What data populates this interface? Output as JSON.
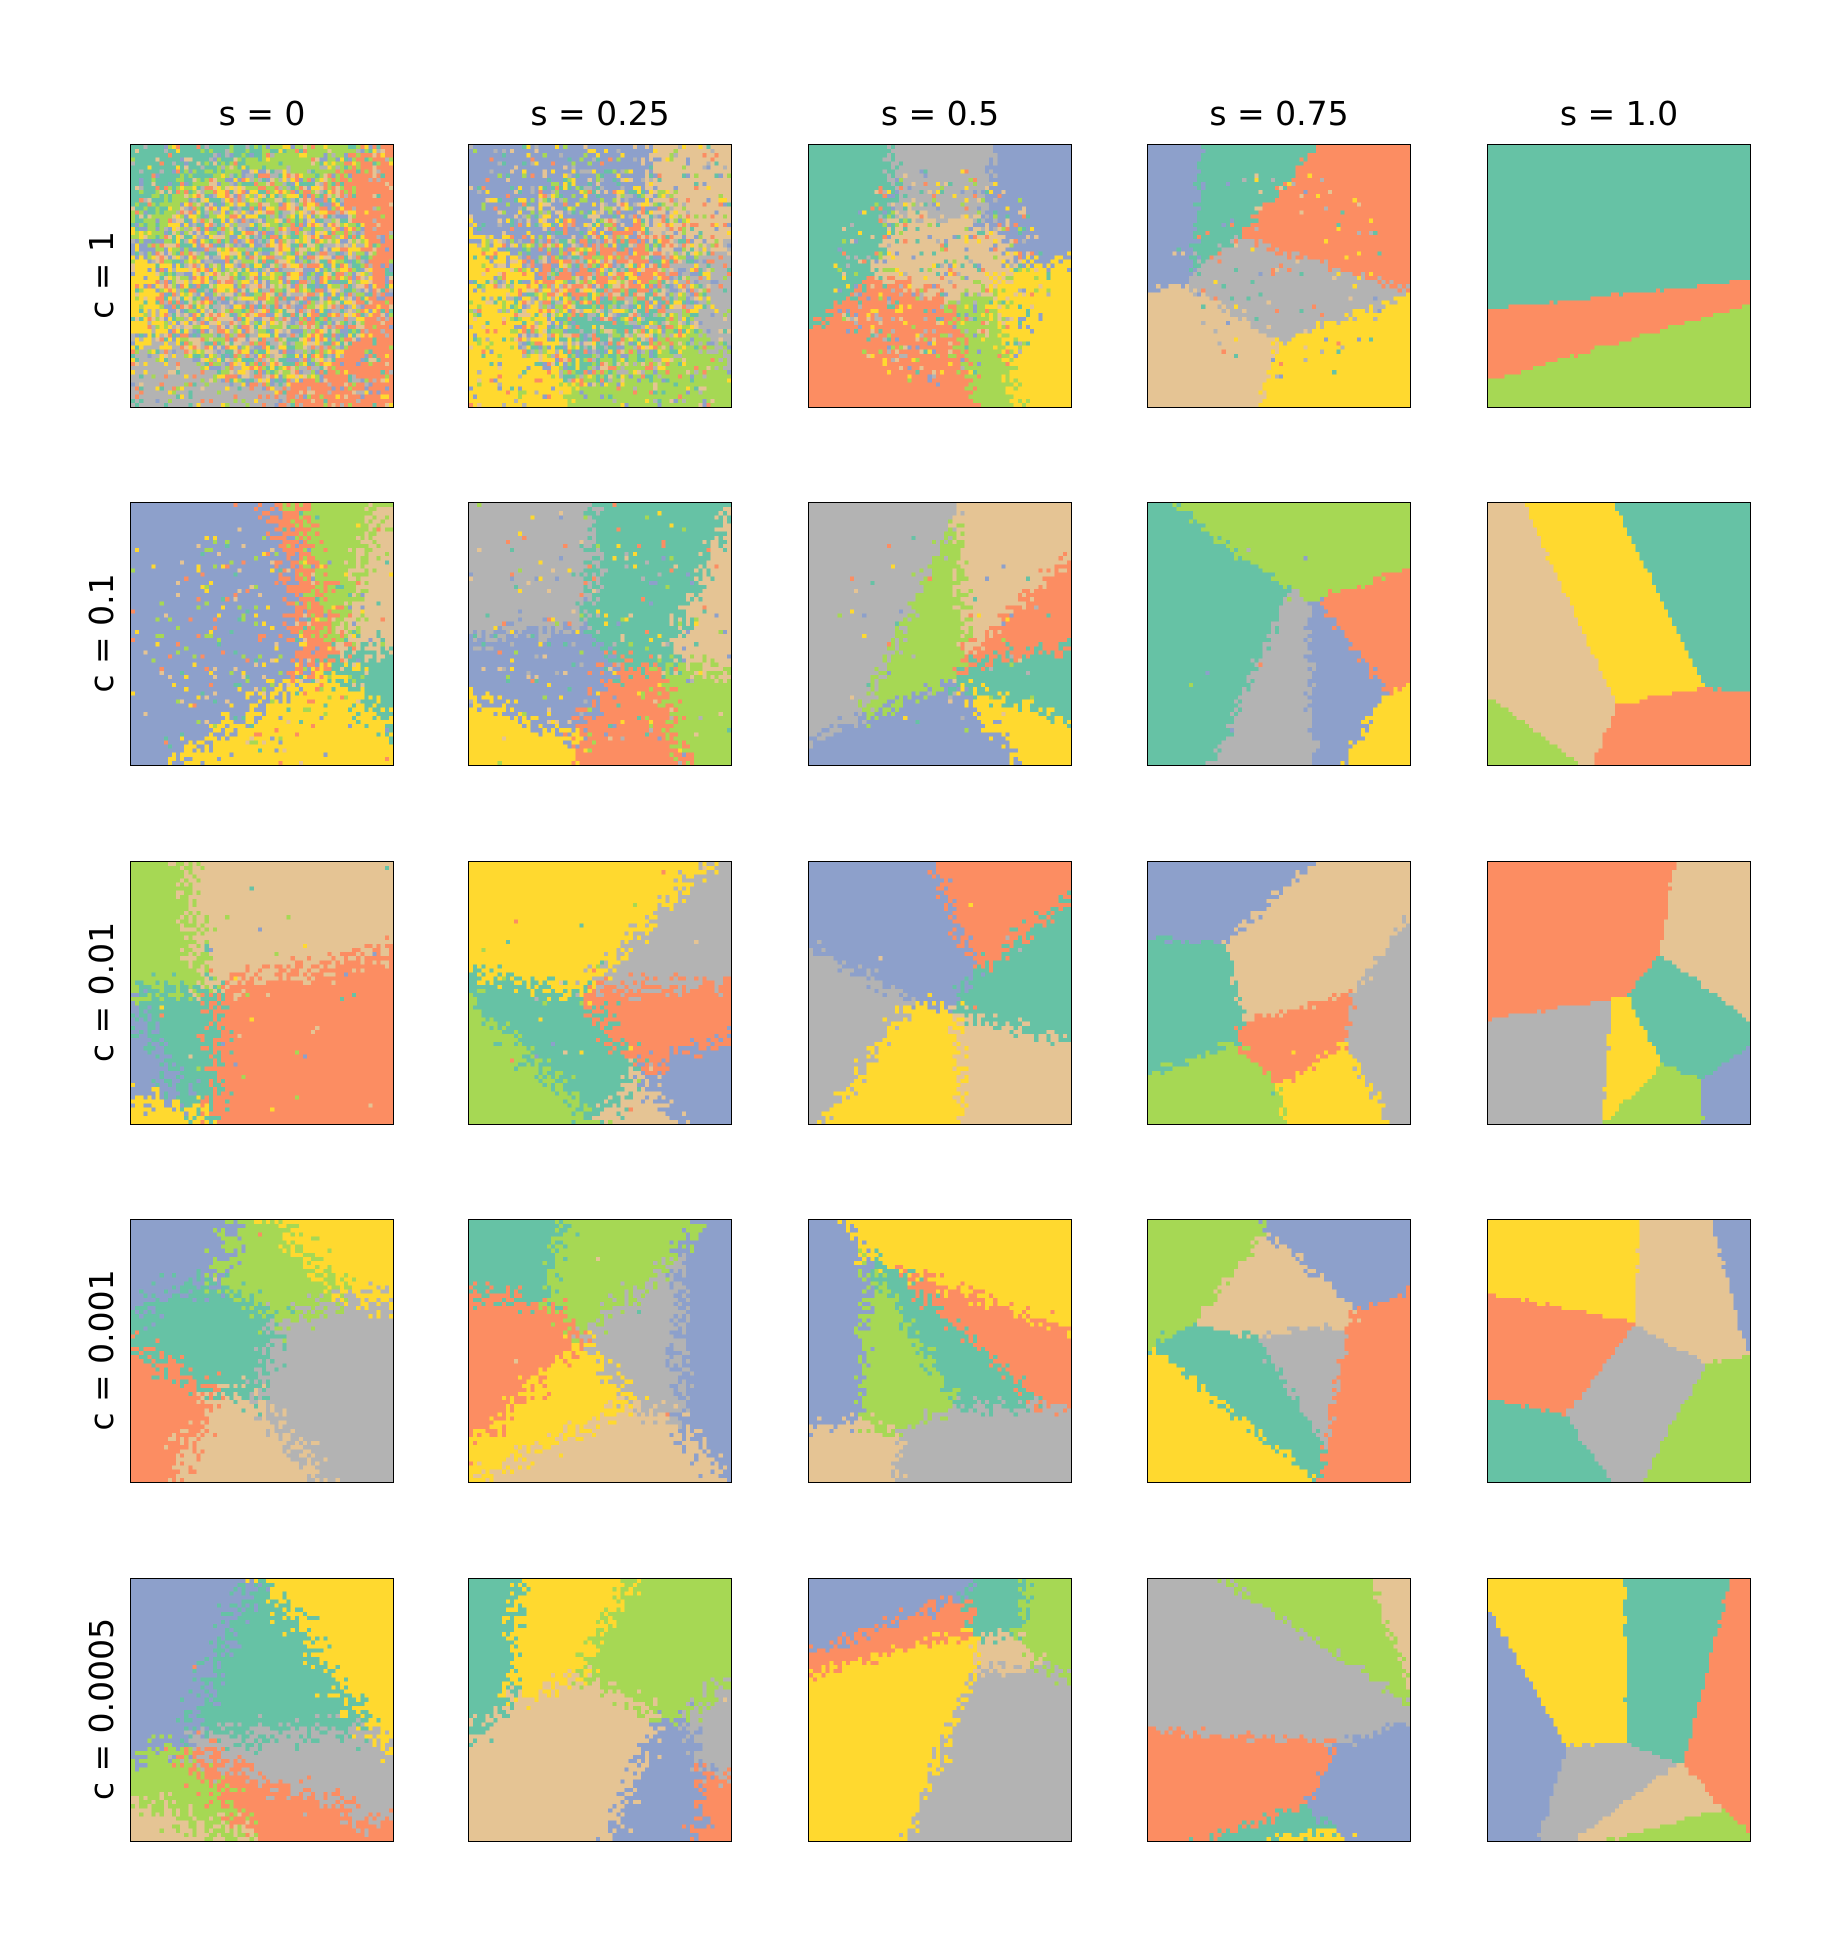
{
  "chart_data": {
    "type": "heatmap",
    "title": "",
    "column_titles": [
      "s = 0",
      "s = 0.25",
      "s = 0.5",
      "s = 0.75",
      "s = 1.0"
    ],
    "row_labels": [
      "c = 1",
      "c = 0.1",
      "c = 0.01",
      "c = 0.001",
      "c = 0.0005"
    ],
    "s_values": [
      0,
      0.25,
      0.5,
      0.75,
      1.0
    ],
    "c_values": [
      1,
      0.1,
      0.01,
      0.001,
      0.0005
    ],
    "grid_resolution": 64,
    "axis_ticks": "none",
    "palette": {
      "green": "#66c2a5",
      "orange": "#fc8d62",
      "blue": "#8da0cb",
      "pink": "#e78ac3",
      "lime": "#a6d854",
      "yellow": "#ffd92f",
      "tan": "#e5c494",
      "gray": "#b3b3b3"
    },
    "panel_colors": [
      [
        [
          "tan",
          "blue",
          "lime",
          "green",
          "yellow",
          "orange",
          "gray"
        ],
        [
          "orange",
          "tan",
          "gray",
          "green",
          "lime",
          "blue",
          "yellow"
        ],
        [
          "green",
          "orange",
          "tan",
          "gray",
          "blue",
          "yellow",
          "lime"
        ],
        [
          "orange",
          "tan",
          "blue",
          "yellow",
          "gray",
          "green"
        ],
        [
          "orange",
          "green",
          "lime"
        ]
      ],
      [
        [
          "lime",
          "green",
          "orange",
          "yellow",
          "tan",
          "blue"
        ],
        [
          "yellow",
          "orange",
          "lime",
          "green",
          "gray",
          "blue",
          "tan"
        ],
        [
          "yellow",
          "gray",
          "tan",
          "green",
          "orange",
          "lime",
          "blue"
        ],
        [
          "gray",
          "blue",
          "green",
          "orange",
          "lime",
          "yellow"
        ],
        [
          "tan",
          "yellow",
          "lime",
          "green",
          "orange"
        ]
      ],
      [
        [
          "green",
          "yellow",
          "tan",
          "orange",
          "blue",
          "lime"
        ],
        [
          "yellow",
          "orange",
          "green",
          "blue",
          "lime",
          "tan",
          "gray"
        ],
        [
          "orange",
          "tan",
          "green",
          "blue",
          "gray",
          "yellow"
        ],
        [
          "blue",
          "orange",
          "gray",
          "green",
          "tan",
          "lime",
          "yellow"
        ],
        [
          "yellow",
          "green",
          "lime",
          "tan",
          "orange",
          "blue",
          "gray"
        ]
      ],
      [
        [
          "green",
          "tan",
          "lime",
          "yellow",
          "orange",
          "gray",
          "blue"
        ],
        [
          "orange",
          "blue",
          "tan",
          "yellow",
          "gray",
          "lime",
          "green"
        ],
        [
          "blue",
          "green",
          "tan",
          "yellow",
          "gray",
          "orange",
          "lime"
        ],
        [
          "lime",
          "green",
          "orange",
          "gray",
          "tan",
          "blue",
          "yellow"
        ],
        [
          "orange",
          "lime",
          "gray",
          "yellow",
          "green",
          "blue",
          "tan"
        ]
      ],
      [
        [
          "blue",
          "tan",
          "orange",
          "green",
          "gray",
          "yellow",
          "lime"
        ],
        [
          "lime",
          "yellow",
          "blue",
          "green",
          "orange",
          "gray",
          "tan"
        ],
        [
          "yellow",
          "green",
          "tan",
          "orange",
          "lime",
          "gray",
          "blue"
        ],
        [
          "yellow",
          "gray",
          "green",
          "lime",
          "blue",
          "tan",
          "orange"
        ],
        [
          "yellow",
          "orange",
          "gray",
          "tan",
          "lime",
          "green",
          "blue"
        ]
      ]
    ],
    "panels_seeds_note": ""
  }
}
